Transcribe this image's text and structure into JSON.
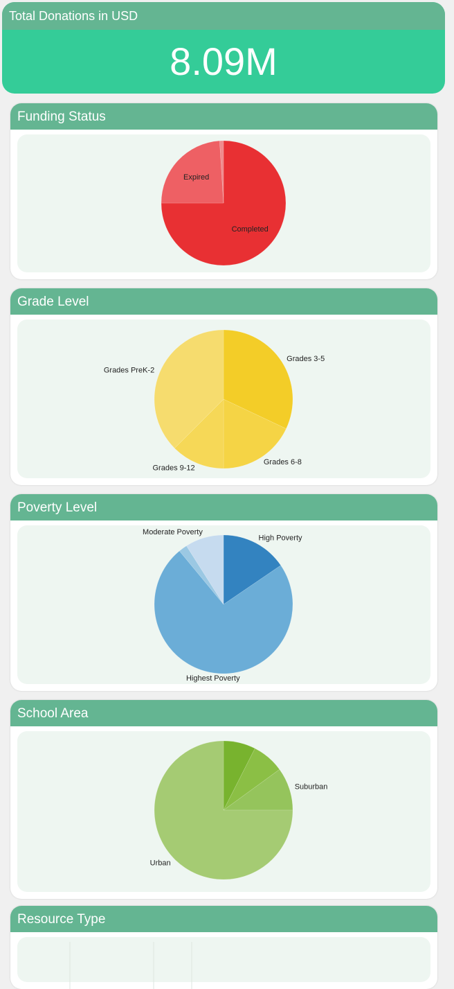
{
  "kpi": {
    "title": "Total Donations in USD",
    "value": "8.09M"
  },
  "chart_data": [
    {
      "type": "pie",
      "title": "Funding Status",
      "categories": [
        "Completed",
        "Expired",
        null
      ],
      "values": [
        75,
        24,
        1
      ],
      "colors": [
        "#e83033",
        "#ee6064",
        "#f08a8c"
      ]
    },
    {
      "type": "pie",
      "title": "Grade Level",
      "categories": [
        "Grades 3-5",
        "Grades 6-8",
        "Grades 9-12",
        "Grades PreK-2"
      ],
      "values": [
        32,
        18,
        12.5,
        37.5
      ],
      "colors": [
        "#f3cd28",
        "#f5d445",
        "#f6d857",
        "#f6dc6e"
      ]
    },
    {
      "type": "pie",
      "title": "Poverty Level",
      "categories": [
        "High Poverty",
        "Highest Poverty",
        null,
        "Moderate Poverty"
      ],
      "values": [
        15.5,
        73.5,
        2,
        9
      ],
      "colors": [
        "#3383c0",
        "#6badd7",
        "#9bc8e3",
        "#c6dbef"
      ]
    },
    {
      "type": "pie",
      "title": "School Area",
      "categories": [
        null,
        null,
        "Suburban",
        "Urban"
      ],
      "values": [
        7.5,
        7.5,
        10,
        75
      ],
      "colors": [
        "#78b32e",
        "#8bbf45",
        "#95c45c",
        "#a5cb73"
      ]
    },
    {
      "type": "bar",
      "title": "Resource Type"
    }
  ]
}
